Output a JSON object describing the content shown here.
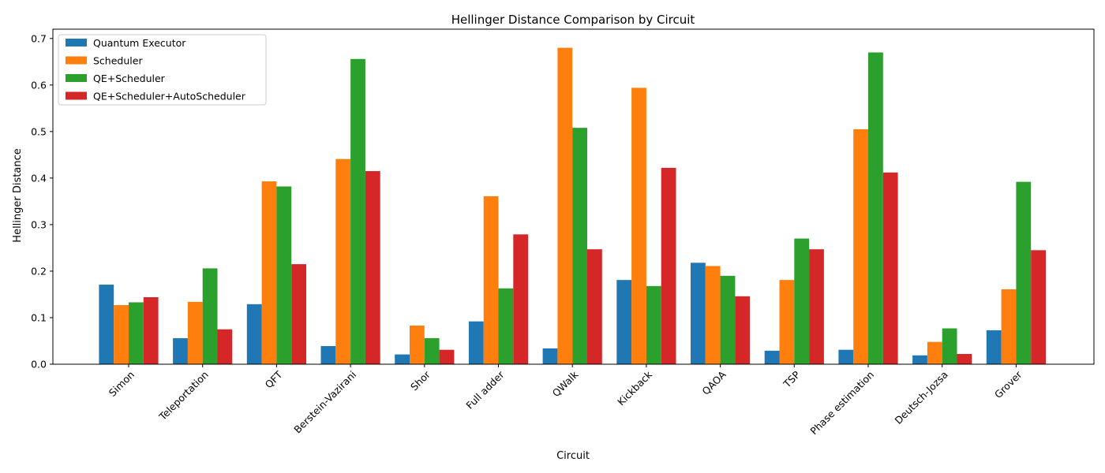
{
  "chart_data": {
    "type": "bar",
    "title": "Hellinger Distance Comparison by Circuit",
    "xlabel": "Circuit",
    "ylabel": "Hellinger Distance",
    "ylim": [
      0,
      0.72
    ],
    "yticks": [
      "0.0",
      "0.1",
      "0.2",
      "0.3",
      "0.4",
      "0.5",
      "0.6",
      "0.7"
    ],
    "grid": false,
    "legend_position": "top-left",
    "categories": [
      "Simon",
      "Teleportation",
      "QFT",
      "Berstein-Vazirani",
      "Shor",
      "Full adder",
      "QWalk",
      "Kickback",
      "QAOA",
      "TSP",
      "Phase estimation",
      "Deutsch-Jozsa",
      "Grover"
    ],
    "series": [
      {
        "name": "Quantum Executor",
        "color": "#1f77b4",
        "values": [
          0.171,
          0.056,
          0.129,
          0.039,
          0.021,
          0.092,
          0.034,
          0.181,
          0.218,
          0.029,
          0.031,
          0.019,
          0.073
        ]
      },
      {
        "name": "Scheduler",
        "color": "#ff7f0e",
        "values": [
          0.127,
          0.134,
          0.393,
          0.441,
          0.083,
          0.361,
          0.68,
          0.594,
          0.211,
          0.181,
          0.505,
          0.048,
          0.161
        ]
      },
      {
        "name": "QE+Scheduler",
        "color": "#2ca02c",
        "values": [
          0.133,
          0.206,
          0.382,
          0.656,
          0.056,
          0.163,
          0.508,
          0.168,
          0.19,
          0.27,
          0.67,
          0.077,
          0.392
        ]
      },
      {
        "name": "QE+Scheduler+AutoScheduler",
        "color": "#d62728",
        "values": [
          0.144,
          0.075,
          0.215,
          0.415,
          0.031,
          0.279,
          0.247,
          0.422,
          0.146,
          0.247,
          0.412,
          0.022,
          0.245
        ]
      }
    ]
  }
}
